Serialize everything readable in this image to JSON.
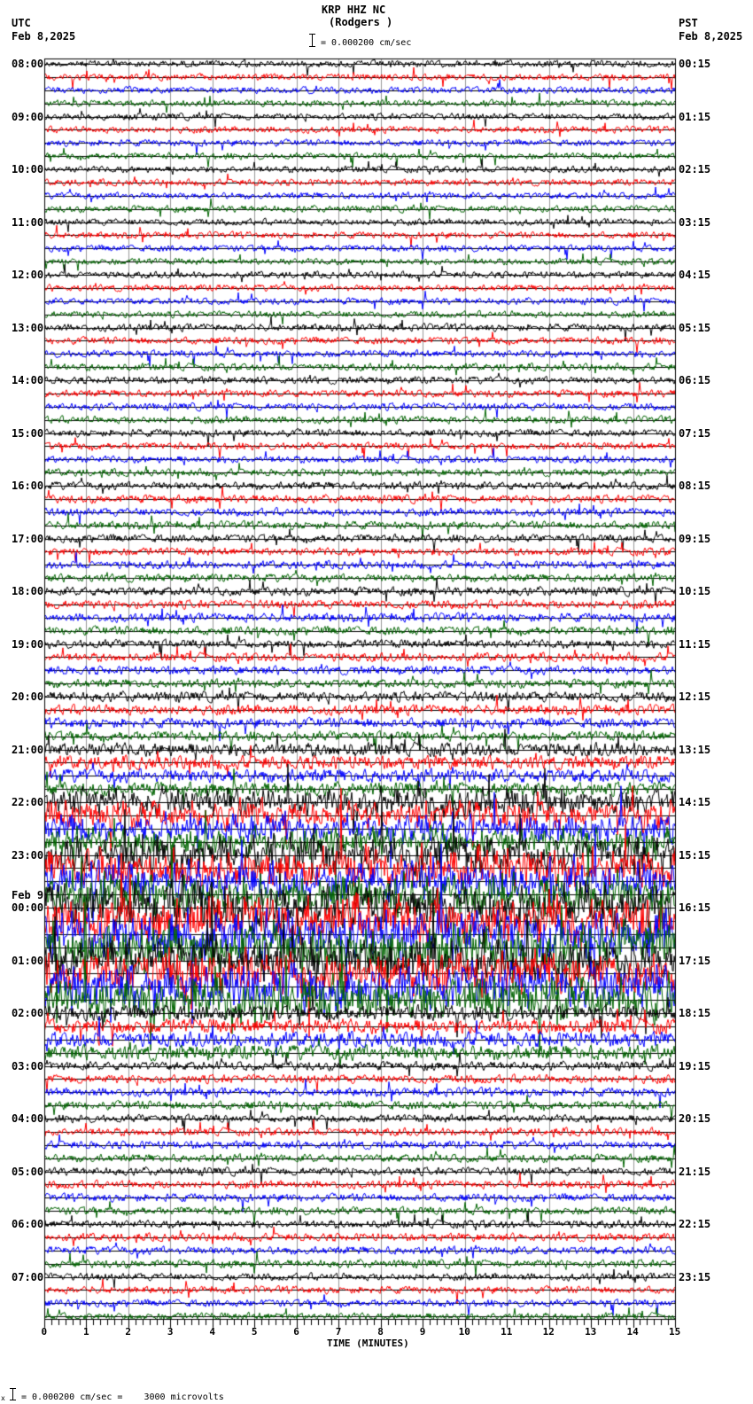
{
  "header": {
    "station": "KRP HHZ NC",
    "location": "(Rodgers )",
    "scale_text": "= 0.000200 cm/sec",
    "left_tz": "UTC",
    "left_date": "Feb 8,2025",
    "right_tz": "PST",
    "right_date": "Feb 8,2025"
  },
  "footer": {
    "scale_text": "= 0.000200 cm/sec =    3000 microvolts",
    "scale_prefix": "x"
  },
  "chart_data": {
    "type": "line",
    "title": "KRP HHZ NC (Rodgers )",
    "subtitle": "= 0.000200 cm/sec",
    "xlabel": "TIME (MINUTES)",
    "ylabel": "",
    "xlim": [
      0,
      15
    ],
    "x_ticks": [
      "0",
      "1",
      "2",
      "3",
      "4",
      "5",
      "6",
      "7",
      "8",
      "9",
      "10",
      "11",
      "12",
      "13",
      "14",
      "15"
    ],
    "minor_tick_seconds": 10,
    "grid": "vertical gridlines each minute, horizontal trace baselines",
    "traces_per_hour": 4,
    "trace_colors": [
      "#000000",
      "#ff0000",
      "#0000ff",
      "#006400"
    ],
    "utc_labels": [
      "08:00",
      "09:00",
      "10:00",
      "11:00",
      "12:00",
      "13:00",
      "14:00",
      "15:00",
      "16:00",
      "17:00",
      "18:00",
      "19:00",
      "20:00",
      "21:00",
      "22:00",
      "23:00",
      "00:00",
      "01:00",
      "02:00",
      "03:00",
      "04:00",
      "05:00",
      "06:00",
      "07:00"
    ],
    "date_change_label": {
      "text": "Feb 9",
      "before_index": 16
    },
    "pst_labels": [
      "00:15",
      "01:15",
      "02:15",
      "03:15",
      "04:15",
      "05:15",
      "06:15",
      "07:15",
      "08:15",
      "09:15",
      "10:15",
      "11:15",
      "12:15",
      "13:15",
      "14:15",
      "15:15",
      "16:15",
      "17:15",
      "18:15",
      "19:15",
      "20:15",
      "21:15",
      "22:15",
      "23:15"
    ],
    "amplitude_by_hour": [
      1.0,
      1.0,
      1.0,
      1.0,
      1.0,
      1.1,
      1.1,
      1.1,
      1.2,
      1.2,
      1.3,
      1.3,
      1.5,
      2.0,
      3.2,
      4.5,
      5.5,
      5.0,
      2.2,
      1.3,
      1.2,
      1.2,
      1.2,
      1.1
    ],
    "scale": "0.000200 cm/sec = 3000 microvolts"
  }
}
